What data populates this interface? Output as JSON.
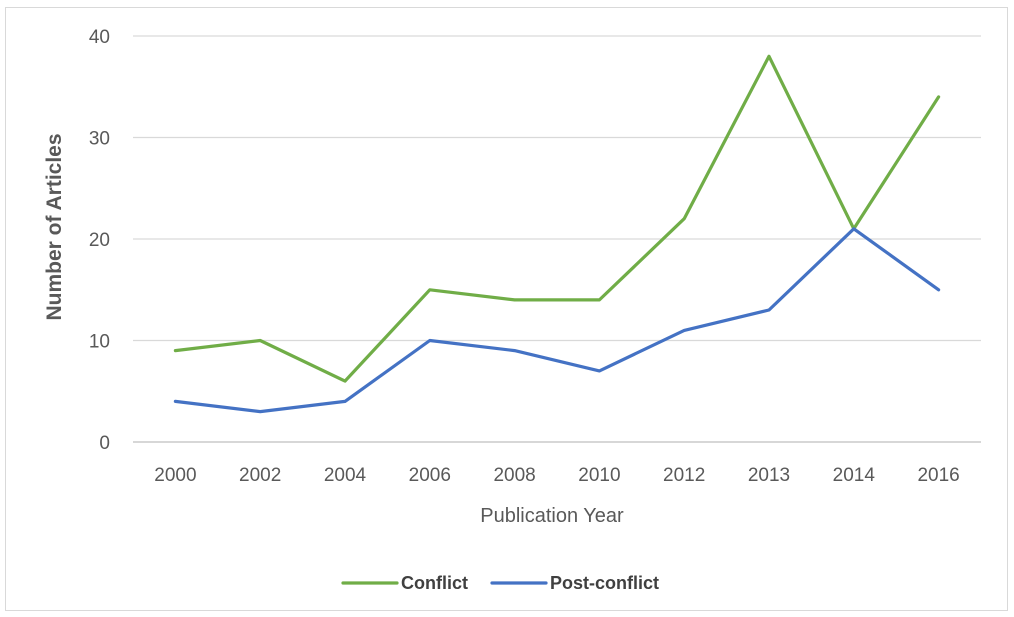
{
  "chart_data": {
    "type": "line",
    "title": "",
    "xlabel": "Publication Year",
    "ylabel": "Number of Articles",
    "categories": [
      "2000",
      "2002",
      "2004",
      "2006",
      "2008",
      "2010",
      "2012",
      "2013",
      "2014",
      "2016"
    ],
    "ylim": [
      0,
      40
    ],
    "yticks": [
      "0",
      "10",
      "20",
      "30",
      "40"
    ],
    "grid": "horizontal",
    "legend_position": "bottom",
    "series": [
      {
        "name": "Conflict",
        "color": "#70ad47",
        "values": [
          9,
          10,
          6,
          15,
          14,
          14,
          22,
          38,
          21,
          34
        ]
      },
      {
        "name": "Post-conflict",
        "color": "#4472c4",
        "values": [
          4,
          3,
          4,
          10,
          9,
          7,
          11,
          13,
          21,
          15
        ]
      }
    ]
  }
}
